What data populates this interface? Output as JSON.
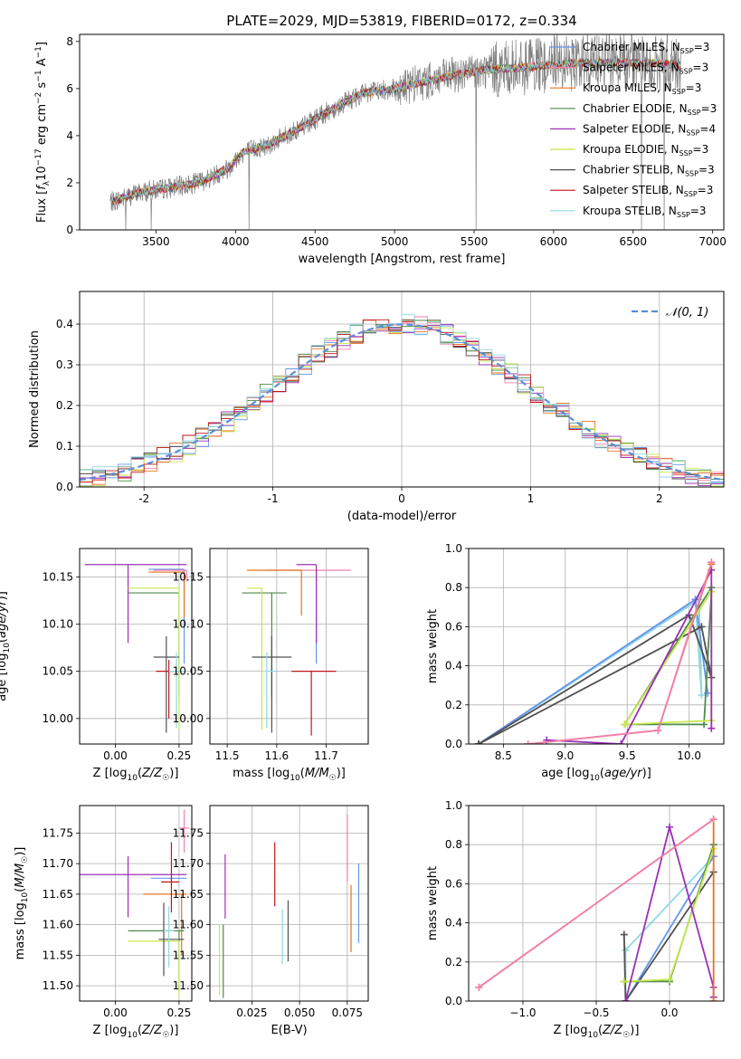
{
  "figure_title": "PLATE=2029, MJD=53819, FIBERID=0172, z=0.334",
  "colors": {
    "Chabrier MILES": "#6495ed",
    "Salpeter MILES": "#f080b0",
    "Kroupa MILES": "#e8731f",
    "Chabrier ELODIE": "#4e8a4e",
    "Salpeter ELODIE": "#9b30b8",
    "Kroupa ELODIE": "#c8e84c",
    "Chabrier STELIB": "#505050",
    "Salpeter STELIB": "#c0141c",
    "Kroupa STELIB": "#90d8e0",
    "normal": "#5b8fd6",
    "grid": "#b0b0b0",
    "spectrum_data": "#808080"
  },
  "chart_data": [
    {
      "type": "line",
      "id": "spectrum",
      "title": "",
      "xlabel": "wavelength [Angstrom, rest frame]",
      "ylabel": "Flux [f_λ 10^-17 erg cm^-2 s^-1 A^-1]",
      "xlim": [
        3020,
        7070
      ],
      "ylim": [
        0,
        8.3
      ],
      "xticks": [
        3500,
        4000,
        4500,
        5000,
        5500,
        6000,
        6500,
        7000
      ],
      "yticks": [
        0,
        2,
        4,
        6,
        8
      ],
      "grid": false,
      "legend_position": "upper-right",
      "legend": [
        {
          "label": "Chabrier MILES, N",
          "sub": "SSP",
          "tail": "=3",
          "color_key": "Chabrier MILES"
        },
        {
          "label": "Salpeter MILES, N",
          "sub": "SSP",
          "tail": "=3",
          "color_key": "Salpeter MILES"
        },
        {
          "label": "Kroupa MILES, N",
          "sub": "SSP",
          "tail": "=3",
          "color_key": "Kroupa MILES"
        },
        {
          "label": "Chabrier ELODIE, N",
          "sub": "SSP",
          "tail": "=3",
          "color_key": "Chabrier ELODIE"
        },
        {
          "label": "Salpeter ELODIE, N",
          "sub": "SSP",
          "tail": "=4",
          "color_key": "Salpeter ELODIE"
        },
        {
          "label": "Kroupa ELODIE, N",
          "sub": "SSP",
          "tail": "=3",
          "color_key": "Kroupa ELODIE"
        },
        {
          "label": "Chabrier STELIB, N",
          "sub": "SSP",
          "tail": "=3",
          "color_key": "Chabrier STELIB"
        },
        {
          "label": "Salpeter STELIB, N",
          "sub": "SSP",
          "tail": "=3",
          "color_key": "Salpeter STELIB"
        },
        {
          "label": "Kroupa STELIB, N",
          "sub": "SSP",
          "tail": "=3",
          "color_key": "Kroupa STELIB"
        }
      ],
      "continuum": [
        [
          3230,
          1.2
        ],
        [
          3400,
          1.6
        ],
        [
          3600,
          1.8
        ],
        [
          3700,
          1.9
        ],
        [
          3800,
          2.1
        ],
        [
          3950,
          2.6
        ],
        [
          4050,
          3.3
        ],
        [
          4200,
          3.6
        ],
        [
          4400,
          4.3
        ],
        [
          4600,
          5.1
        ],
        [
          4800,
          5.8
        ],
        [
          5000,
          6.0
        ],
        [
          5200,
          6.3
        ],
        [
          5400,
          6.6
        ],
        [
          5600,
          6.8
        ],
        [
          5800,
          6.9
        ],
        [
          6000,
          7.0
        ],
        [
          6200,
          7.1
        ],
        [
          6400,
          7.1
        ],
        [
          6600,
          7.1
        ],
        [
          6800,
          7.0
        ]
      ],
      "data_start": 3210,
      "data_end": 6800
    },
    {
      "type": "histogram",
      "id": "residuals",
      "xlabel": "(data-model)/error",
      "ylabel": "Normed distribution",
      "xlim": [
        -2.5,
        2.5
      ],
      "ylim": [
        0,
        0.48
      ],
      "xticks": [
        -2,
        -1,
        0,
        1,
        2
      ],
      "yticks": [
        0.0,
        0.1,
        0.2,
        0.3,
        0.4
      ],
      "grid": true,
      "legend": [
        {
          "label": "𝒩(0, 1)",
          "color_key": "normal",
          "style": "dashed"
        }
      ],
      "legend_position": "upper-right",
      "bin_edges_start": -2.5,
      "bin_width": 0.1,
      "nbins": 50
    },
    {
      "type": "errorbar",
      "id": "age_vs_Z",
      "xlabel": "Z [log10(Z/Z☉)]",
      "ylabel": "age [log10(age/yr)]",
      "xlim": [
        -0.14,
        0.3
      ],
      "ylim": [
        9.973,
        10.18
      ],
      "xticks": [
        0.0,
        0.25
      ],
      "yticks": [
        10.0,
        10.05,
        10.1,
        10.15
      ],
      "grid": true,
      "points": [
        {
          "model": "Chabrier MILES",
          "x": 0.27,
          "xerr": [
            0.14,
            0.0
          ],
          "y": 10.158,
          "yerr": [
            0.1,
            0.0
          ]
        },
        {
          "model": "Salpeter MILES",
          "x": 0.28,
          "xerr": [
            0.13,
            0.0
          ],
          "y": 10.157,
          "yerr": [
            0.012,
            0.0
          ]
        },
        {
          "model": "Kroupa MILES",
          "x": 0.27,
          "xerr": [
            0.14,
            0.0
          ],
          "y": 10.155,
          "yerr": [
            0.048,
            0.0
          ]
        },
        {
          "model": "Chabrier ELODIE",
          "x": 0.25,
          "xerr": [
            0.2,
            0.0
          ],
          "y": 10.133,
          "yerr": [
            0.11,
            0.0
          ]
        },
        {
          "model": "Salpeter ELODIE",
          "x": 0.05,
          "xerr": [
            0.17,
            0.23
          ],
          "y": 10.163,
          "yerr": [
            0.083,
            0.0
          ]
        },
        {
          "model": "Kroupa ELODIE",
          "x": 0.25,
          "xerr": [
            0.2,
            0.0
          ],
          "y": 10.138,
          "yerr": [
            0.15,
            0.0
          ]
        },
        {
          "model": "Chabrier STELIB",
          "x": 0.2,
          "xerr": [
            0.05,
            0.05
          ],
          "y": 10.065,
          "yerr": [
            0.08,
            0.022
          ]
        },
        {
          "model": "Salpeter STELIB",
          "x": 0.21,
          "xerr": [
            0.05,
            0.05
          ],
          "y": 10.05,
          "yerr": [
            0.05,
            0.012
          ]
        },
        {
          "model": "Kroupa STELIB",
          "x": 0.24,
          "xerr": [
            0.03,
            0.03
          ],
          "y": 10.05,
          "yerr": [
            0.06,
            0.02
          ]
        }
      ]
    },
    {
      "type": "errorbar",
      "id": "age_vs_mass",
      "xlabel": "mass [log10(M/M☉)]",
      "ylabel": "",
      "xlim": [
        11.465,
        11.785
      ],
      "ylim": [
        9.973,
        10.18
      ],
      "xticks": [
        11.5,
        11.6,
        11.7
      ],
      "yticks": [
        10.0,
        10.05,
        10.1,
        10.15
      ],
      "grid": true,
      "points": [
        {
          "model": "Chabrier MILES",
          "x": 11.68,
          "xerr": [
            0.0,
            0.0
          ],
          "y": 10.158,
          "yerr": [
            0.1,
            0.0
          ]
        },
        {
          "model": "Salpeter MILES",
          "x": 11.68,
          "xerr": [
            0.1,
            0.07
          ],
          "y": 10.157,
          "yerr": [
            0.012,
            0.0
          ]
        },
        {
          "model": "Kroupa MILES",
          "x": 11.65,
          "xerr": [
            0.11,
            0.0
          ],
          "y": 10.157,
          "yerr": [
            0.048,
            0.0
          ]
        },
        {
          "model": "Chabrier ELODIE",
          "x": 11.59,
          "xerr": [
            0.06,
            0.03
          ],
          "y": 10.133,
          "yerr": [
            0.11,
            0.0
          ]
        },
        {
          "model": "Salpeter ELODIE",
          "x": 11.68,
          "xerr": [
            0.04,
            0.0
          ],
          "y": 10.163,
          "yerr": [
            0.083,
            0.0
          ]
        },
        {
          "model": "Kroupa ELODIE",
          "x": 11.57,
          "xerr": [
            0.03,
            0.0
          ],
          "y": 10.138,
          "yerr": [
            0.15,
            0.0
          ]
        },
        {
          "model": "Chabrier STELIB",
          "x": 11.59,
          "xerr": [
            0.04,
            0.04
          ],
          "y": 10.065,
          "yerr": [
            0.08,
            0.022
          ]
        },
        {
          "model": "Salpeter STELIB",
          "x": 11.67,
          "xerr": [
            0.04,
            0.05
          ],
          "y": 10.05,
          "yerr": [
            0.068,
            0.0
          ]
        },
        {
          "model": "Kroupa STELIB",
          "x": 11.58,
          "xerr": [
            0.0,
            0.02
          ],
          "y": 10.05,
          "yerr": [
            0.06,
            0.02
          ]
        }
      ]
    },
    {
      "type": "line",
      "id": "weight_vs_age",
      "xlabel": "age [log10(age/yr)]",
      "ylabel": "mass weight",
      "xlim": [
        8.22,
        10.28
      ],
      "ylim": [
        0.0,
        1.0
      ],
      "xticks": [
        8.5,
        9.0,
        9.5,
        10.0
      ],
      "yticks": [
        0.0,
        0.2,
        0.4,
        0.6,
        0.8,
        1.0
      ],
      "grid": true,
      "series": [
        {
          "model": "Kroupa STELIB",
          "x": [
            8.3,
            10.05,
            10.1,
            10.08,
            8.3
          ],
          "y": [
            0.0,
            0.73,
            0.25,
            0.74,
            0.0
          ]
        },
        {
          "model": "Chabrier MILES",
          "x": [
            8.3,
            10.05,
            10.15
          ],
          "y": [
            0.0,
            0.74,
            0.26
          ]
        },
        {
          "model": "Chabrier STELIB",
          "x": [
            8.3,
            10.0,
            10.18,
            10.1,
            8.3
          ],
          "y": [
            0.0,
            0.66,
            0.34,
            0.6,
            0.0
          ]
        },
        {
          "model": "Chabrier ELODIE",
          "x": [
            9.48,
            10.12,
            10.18,
            10.18,
            9.48
          ],
          "y": [
            0.1,
            0.1,
            0.78,
            0.8,
            0.1
          ]
        },
        {
          "model": "Kroupa ELODIE",
          "x": [
            9.48,
            10.18,
            10.18,
            9.48
          ],
          "y": [
            0.1,
            0.78,
            0.12,
            0.1
          ]
        },
        {
          "model": "Salpeter ELODIE",
          "x": [
            8.85,
            9.45,
            10.18,
            10.18
          ],
          "y": [
            0.02,
            0.0,
            0.89,
            0.08
          ]
        },
        {
          "model": "Kroupa MILES",
          "x": [
            8.7,
            9.75,
            10.18,
            10.18
          ],
          "y": [
            0.0,
            0.07,
            0.92,
            0.93
          ]
        },
        {
          "model": "Salpeter MILES",
          "x": [
            8.7,
            9.75,
            10.18
          ],
          "y": [
            0.0,
            0.07,
            0.93
          ]
        }
      ]
    },
    {
      "type": "errorbar",
      "id": "mass_vs_Z",
      "xlabel": "Z [log10(Z/Z☉)]",
      "ylabel": "mass [log10(M/M☉)]",
      "xlim": [
        -0.14,
        0.3
      ],
      "ylim": [
        11.475,
        11.795
      ],
      "xticks": [
        0.0,
        0.25
      ],
      "yticks": [
        11.5,
        11.55,
        11.6,
        11.65,
        11.7,
        11.75
      ],
      "grid": true,
      "points": [
        {
          "model": "Chabrier MILES",
          "x": 0.28,
          "xerr": [
            0.14,
            0.0
          ],
          "y": 11.676,
          "yerr": [
            0.0,
            0.0
          ]
        },
        {
          "model": "Salpeter MILES",
          "x": 0.27,
          "xerr": [
            0.02,
            0.02
          ],
          "y": 11.758,
          "yerr": [
            0.04,
            0.03
          ]
        },
        {
          "model": "Kroupa MILES",
          "x": 0.26,
          "xerr": [
            0.15,
            0.02
          ],
          "y": 11.65,
          "yerr": [
            0.1,
            0.0
          ]
        },
        {
          "model": "Chabrier ELODIE",
          "x": 0.25,
          "xerr": [
            0.2,
            0.02
          ],
          "y": 11.59,
          "yerr": [
            0.1,
            0.0
          ]
        },
        {
          "model": "Salpeter ELODIE",
          "x": 0.05,
          "xerr": [
            0.19,
            0.23
          ],
          "y": 11.682,
          "yerr": [
            0.07,
            0.03
          ]
        },
        {
          "model": "Kroupa ELODIE",
          "x": 0.25,
          "xerr": [
            0.2,
            0.0
          ],
          "y": 11.573,
          "yerr": [
            0.09,
            0.0
          ]
        },
        {
          "model": "Chabrier STELIB",
          "x": 0.19,
          "xerr": [
            0.02,
            0.08
          ],
          "y": 11.576,
          "yerr": [
            0.06,
            0.06
          ]
        },
        {
          "model": "Salpeter STELIB",
          "x": 0.22,
          "xerr": [
            0.04,
            0.03
          ],
          "y": 11.67,
          "yerr": [
            0.05,
            0.065
          ]
        },
        {
          "model": "Kroupa STELIB",
          "x": 0.21,
          "xerr": [
            0.02,
            0.02
          ],
          "y": 11.59,
          "yerr": [
            0.06,
            0.04
          ]
        }
      ]
    },
    {
      "type": "errorbar",
      "id": "mass_vs_EBV",
      "xlabel": "E(B-V)",
      "ylabel": "",
      "xlim": [
        0.003,
        0.086
      ],
      "ylim": [
        11.475,
        11.795
      ],
      "xticks": [
        0.025,
        0.05,
        0.075
      ],
      "yticks": [
        11.5,
        11.55,
        11.6,
        11.65,
        11.7,
        11.75
      ],
      "grid": true,
      "points": [
        {
          "model": "Chabrier MILES",
          "x": 0.081,
          "xerr": [
            0.0,
            0.0
          ],
          "y": 11.64,
          "yerr": [
            0.07,
            0.06
          ]
        },
        {
          "model": "Salpeter MILES",
          "x": 0.075,
          "xerr": [
            0.0,
            0.0
          ],
          "y": 11.725,
          "yerr": [
            0.055,
            0.055
          ]
        },
        {
          "model": "Kroupa MILES",
          "x": 0.077,
          "xerr": [
            0.0,
            0.0
          ],
          "y": 11.615,
          "yerr": [
            0.06,
            0.05
          ]
        },
        {
          "model": "Chabrier ELODIE",
          "x": 0.01,
          "xerr": [
            0.0,
            0.0
          ],
          "y": 11.53,
          "yerr": [
            0.05,
            0.07
          ]
        },
        {
          "model": "Salpeter ELODIE",
          "x": 0.011,
          "xerr": [
            0.0,
            0.0
          ],
          "y": 11.66,
          "yerr": [
            0.05,
            0.055
          ]
        },
        {
          "model": "Kroupa ELODIE",
          "x": 0.008,
          "xerr": [
            0.0,
            0.0
          ],
          "y": 11.545,
          "yerr": [
            0.06,
            0.055
          ]
        },
        {
          "model": "Chabrier STELIB",
          "x": 0.044,
          "xerr": [
            0.0,
            0.0
          ],
          "y": 11.59,
          "yerr": [
            0.05,
            0.05
          ]
        },
        {
          "model": "Salpeter STELIB",
          "x": 0.037,
          "xerr": [
            0.0,
            0.0
          ],
          "y": 11.68,
          "yerr": [
            0.05,
            0.055
          ]
        },
        {
          "model": "Kroupa STELIB",
          "x": 0.041,
          "xerr": [
            0.0,
            0.0
          ],
          "y": 11.58,
          "yerr": [
            0.045,
            0.045
          ]
        }
      ]
    },
    {
      "type": "line",
      "id": "weight_vs_Z",
      "xlabel": "Z [log10(Z/Z☉)]",
      "ylabel": "mass weight",
      "xlim": [
        -1.37,
        0.37
      ],
      "ylim": [
        0.0,
        1.0
      ],
      "xticks": [
        -1.0,
        -0.5,
        0.0
      ],
      "yticks": [
        0.0,
        0.2,
        0.4,
        0.6,
        0.8,
        1.0
      ],
      "grid": true,
      "series": [
        {
          "model": "Kroupa STELIB",
          "x": [
            -0.3,
            -0.3,
            0.3
          ],
          "y": [
            0.0,
            0.26,
            0.74
          ]
        },
        {
          "model": "Chabrier MILES",
          "x": [
            -0.3,
            0.3
          ],
          "y": [
            0.0,
            0.74
          ]
        },
        {
          "model": "Chabrier STELIB",
          "x": [
            -0.31,
            -0.3,
            0.3
          ],
          "y": [
            0.34,
            0.0,
            0.66
          ]
        },
        {
          "model": "Chabrier ELODIE",
          "x": [
            -0.31,
            0.0,
            0.3
          ],
          "y": [
            0.1,
            0.1,
            0.8
          ]
        },
        {
          "model": "Kroupa ELODIE",
          "x": [
            -0.31,
            0.0,
            0.3
          ],
          "y": [
            0.1,
            0.11,
            0.78
          ]
        },
        {
          "model": "Salpeter ELODIE",
          "x": [
            -0.3,
            0.0,
            0.3,
            0.3
          ],
          "y": [
            0.0,
            0.89,
            0.07,
            0.02
          ]
        },
        {
          "model": "Kroupa MILES",
          "x": [
            -1.3,
            0.3,
            0.3
          ],
          "y": [
            0.07,
            0.93,
            0.0
          ]
        },
        {
          "model": "Salpeter MILES",
          "x": [
            -1.3,
            0.3
          ],
          "y": [
            0.07,
            0.93
          ]
        }
      ]
    }
  ]
}
